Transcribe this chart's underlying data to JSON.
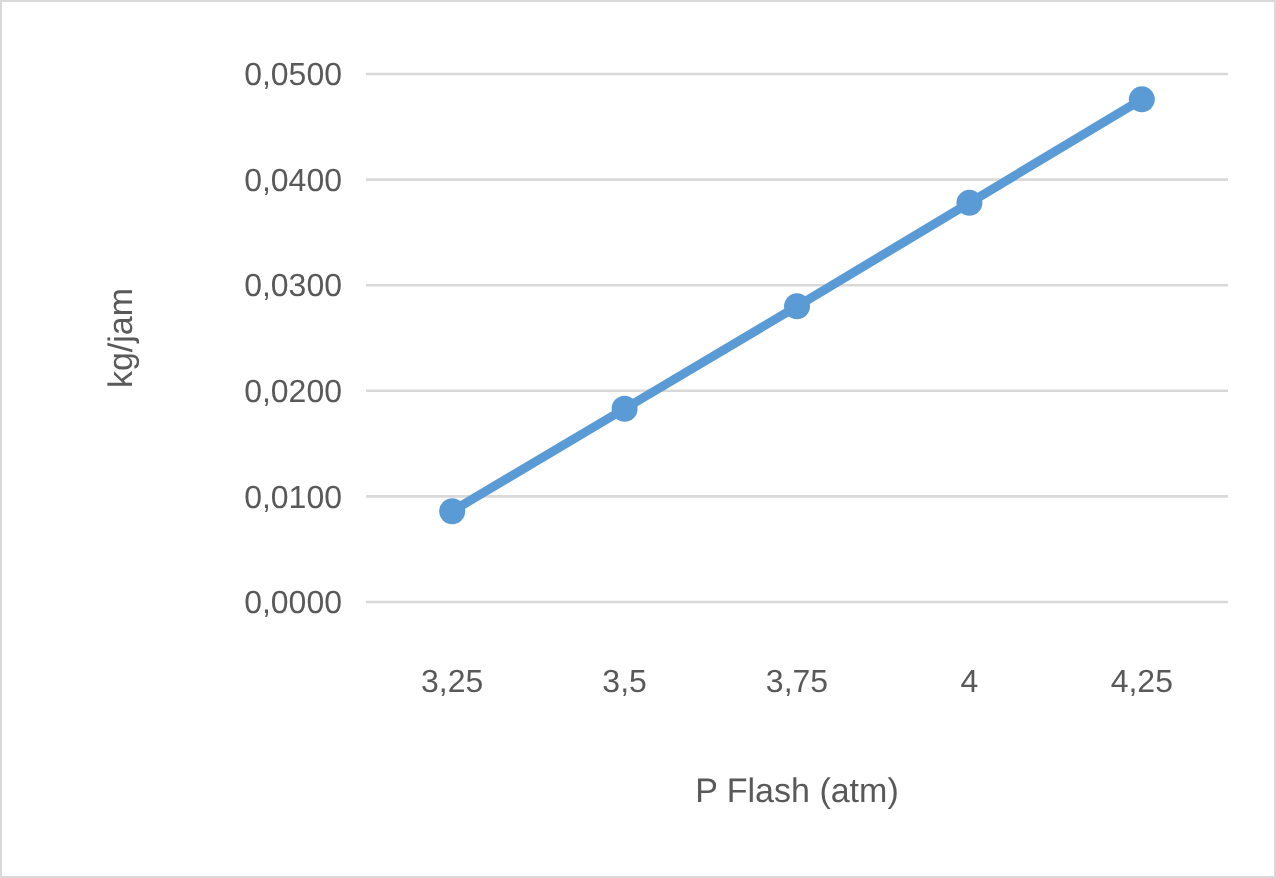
{
  "chart_data": {
    "type": "line",
    "xlabel": "P Flash (atm)",
    "ylabel": "kg/jam",
    "categories": [
      "3,25",
      "3,5",
      "3,75",
      "4",
      "4,25"
    ],
    "series": [
      {
        "color": "#5b9bd5",
        "values": [
          0.0086,
          0.0183,
          0.028,
          0.0378,
          0.0476
        ]
      }
    ],
    "ylim": [
      0,
      0.05
    ],
    "yticks": [
      {
        "value": 0,
        "label": "0,0000"
      },
      {
        "value": 0.01,
        "label": "0,0100"
      },
      {
        "value": 0.02,
        "label": "0,0200"
      },
      {
        "value": 0.03,
        "label": "0,0300"
      },
      {
        "value": 0.04,
        "label": "0,0400"
      },
      {
        "value": 0.05,
        "label": "0,0500"
      }
    ],
    "grid": "y",
    "marker": "circle",
    "line_style": "solid"
  }
}
